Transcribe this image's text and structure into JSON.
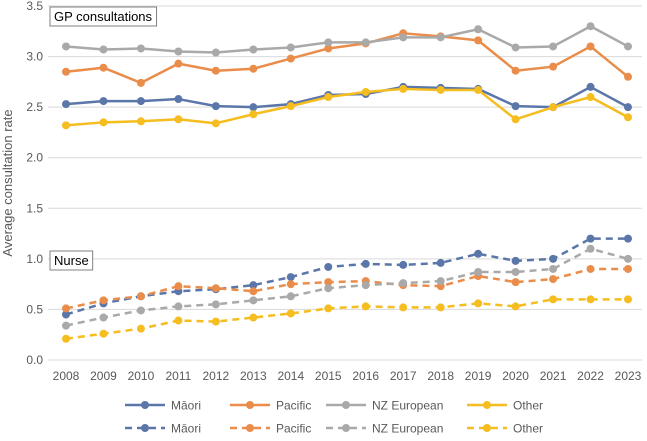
{
  "chart_data": {
    "type": "line",
    "ylabel": "Average consultation rate",
    "xlabel": "",
    "ylim": [
      0,
      3.5
    ],
    "yticks": [
      0.0,
      0.5,
      1.0,
      1.5,
      2.0,
      2.5,
      3.0,
      3.5
    ],
    "ytick_labels": [
      "0.0",
      "0.5",
      "1.0",
      "1.5",
      "2.0",
      "2.5",
      "3.0",
      "3.5"
    ],
    "categories": [
      "2008",
      "2009",
      "2010",
      "2011",
      "2012",
      "2013",
      "2014",
      "2015",
      "2016",
      "2017",
      "2018",
      "2019",
      "2020",
      "2021",
      "2022",
      "2023"
    ],
    "grid": "horizontal",
    "legend_position": "bottom",
    "groups": [
      {
        "name": "GP consultations",
        "line_style": "solid",
        "series": [
          {
            "name": "Māori",
            "color": "#5b76a8",
            "values": [
              2.53,
              2.56,
              2.56,
              2.58,
              2.51,
              2.5,
              2.53,
              2.62,
              2.63,
              2.7,
              2.69,
              2.68,
              2.51,
              2.5,
              2.7,
              2.5
            ]
          },
          {
            "name": "Pacific",
            "color": "#ea8c4a",
            "values": [
              2.85,
              2.89,
              2.74,
              2.93,
              2.86,
              2.88,
              2.98,
              3.08,
              3.13,
              3.23,
              3.2,
              3.16,
              2.86,
              2.9,
              3.1,
              2.8
            ]
          },
          {
            "name": "NZ European",
            "color": "#a9a9a9",
            "values": [
              3.1,
              3.07,
              3.08,
              3.05,
              3.04,
              3.07,
              3.09,
              3.14,
              3.14,
              3.19,
              3.19,
              3.27,
              3.09,
              3.1,
              3.3,
              3.1
            ]
          },
          {
            "name": "Other",
            "color": "#f5bd1f",
            "values": [
              2.32,
              2.35,
              2.36,
              2.38,
              2.34,
              2.43,
              2.51,
              2.6,
              2.65,
              2.68,
              2.67,
              2.67,
              2.38,
              2.5,
              2.6,
              2.4
            ]
          }
        ]
      },
      {
        "name": "Nurse",
        "line_style": "dashed",
        "series": [
          {
            "name": "Māori",
            "color": "#5b76a8",
            "values": [
              0.45,
              0.56,
              0.63,
              0.68,
              0.7,
              0.74,
              0.82,
              0.92,
              0.95,
              0.94,
              0.96,
              1.05,
              0.98,
              1.0,
              1.2,
              1.2
            ]
          },
          {
            "name": "Pacific",
            "color": "#ea8c4a",
            "values": [
              0.51,
              0.59,
              0.63,
              0.73,
              0.71,
              0.68,
              0.75,
              0.77,
              0.78,
              0.74,
              0.73,
              0.83,
              0.77,
              0.8,
              0.9,
              0.9
            ]
          },
          {
            "name": "NZ European",
            "color": "#a9a9a9",
            "values": [
              0.34,
              0.42,
              0.49,
              0.53,
              0.55,
              0.59,
              0.63,
              0.71,
              0.74,
              0.76,
              0.78,
              0.87,
              0.87,
              0.9,
              1.1,
              1.0
            ]
          },
          {
            "name": "Other",
            "color": "#f5bd1f",
            "values": [
              0.21,
              0.26,
              0.31,
              0.39,
              0.38,
              0.42,
              0.46,
              0.51,
              0.53,
              0.52,
              0.52,
              0.56,
              0.53,
              0.6,
              0.6,
              0.6
            ]
          }
        ]
      }
    ]
  }
}
